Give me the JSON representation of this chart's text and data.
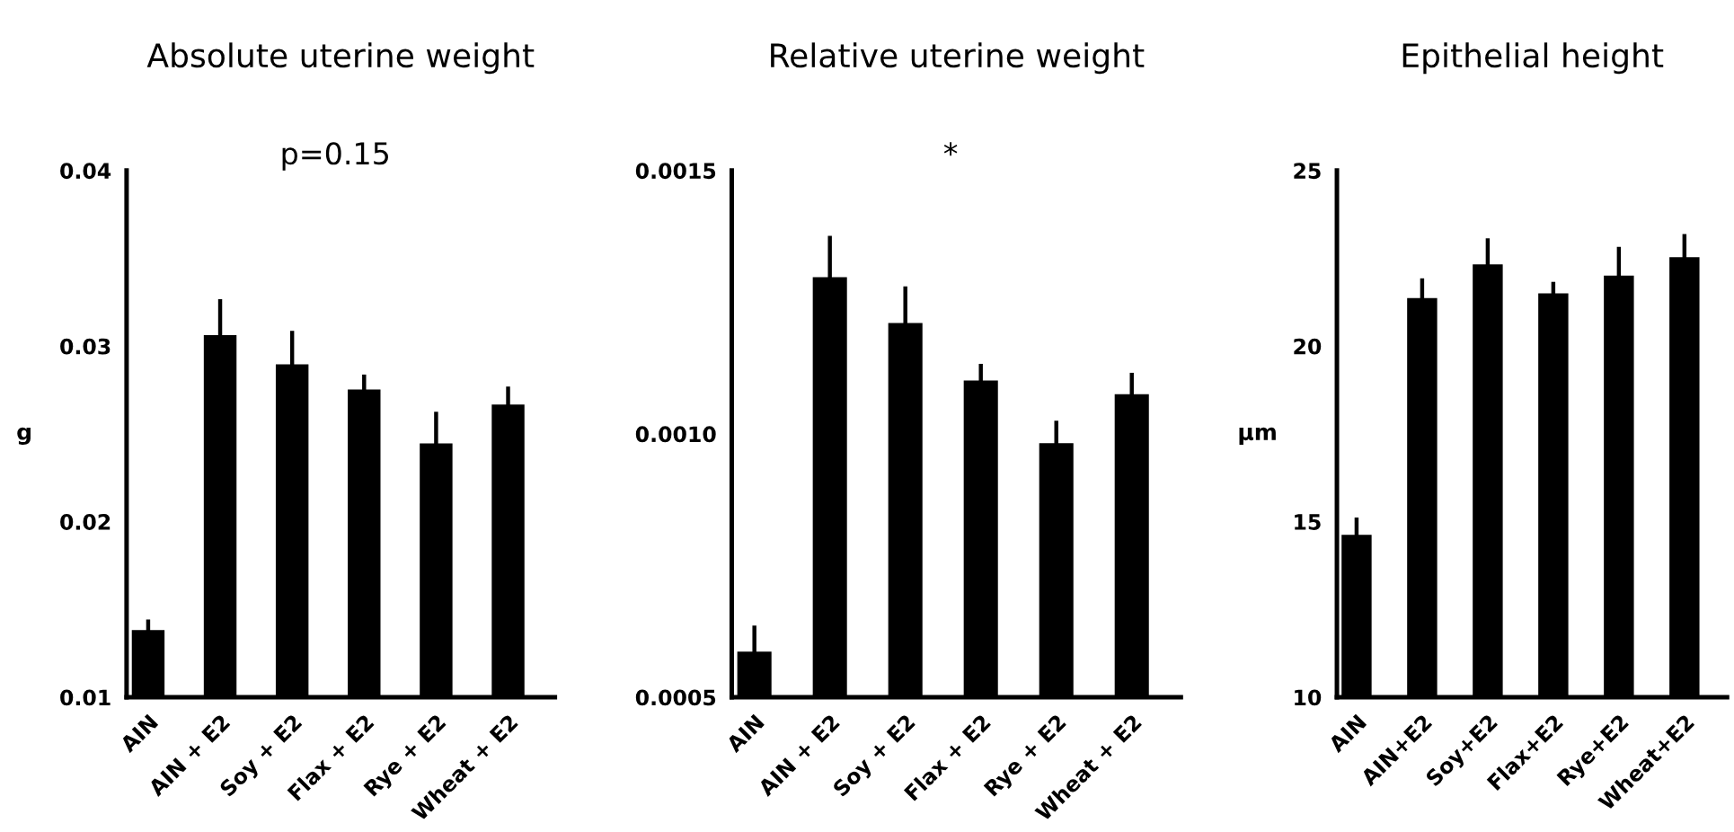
{
  "chart_data": [
    {
      "type": "bar",
      "title": "Absolute uterine weight",
      "ylabel": "g",
      "categories": [
        "AIN",
        "AIN + E2",
        "Soy + E2",
        "Flax + E2",
        "Rye + E2",
        "Wheat + E2"
      ],
      "values": [
        0.01375,
        0.03056,
        0.02889,
        0.02746,
        0.02439,
        0.0266
      ],
      "errors": [
        [
          0.01375,
          0.01443
        ],
        [
          0.03056,
          0.03267
        ],
        [
          0.02889,
          0.03087
        ],
        [
          0.02746,
          0.02838
        ],
        [
          0.02439,
          0.02626
        ],
        [
          0.0266,
          0.0277
        ]
      ],
      "color": "#000000",
      "ylim": [
        0.01,
        0.04
      ],
      "yticks": [
        {
          "value": 0.01,
          "label": "0.01"
        },
        {
          "value": 0.02,
          "label": "0.02"
        },
        {
          "value": 0.03,
          "label": "0.03"
        },
        {
          "value": 0.04,
          "label": "0.04"
        }
      ],
      "annotations": [
        "p=0.15"
      ],
      "grid": false
    },
    {
      "type": "bar",
      "title": "Relative uterine weight",
      "categories": [
        "AIN",
        "AIN + E2",
        "Soy + E2",
        "Flax + E2",
        "Rye + E2",
        "Wheat + E2"
      ],
      "values": [
        0.000584,
        0.001295,
        0.001208,
        0.001099,
        0.00098,
        0.001073
      ],
      "errors": [
        [
          0.000584,
          0.000636
        ],
        [
          0.001295,
          0.001376
        ],
        [
          0.001208,
          0.00128
        ],
        [
          0.001099,
          0.001133
        ],
        [
          0.00098,
          0.001025
        ],
        [
          0.001073,
          0.001116
        ]
      ],
      "color": "#000000",
      "ylim": [
        0.0005,
        0.0015
      ],
      "yticks": [
        {
          "value": 0.0005,
          "label": "0.0005"
        },
        {
          "value": 0.001,
          "label": "0.0010"
        },
        {
          "value": 0.0015,
          "label": "0.0015"
        }
      ],
      "annotations": [
        "*"
      ],
      "grid": false
    },
    {
      "type": "bar",
      "title": "Epithelial height",
      "ylabel": "µm",
      "categories": [
        "AIN",
        "AIN+E2",
        "Soy+E2",
        "Flax+E2",
        "Rye+E2",
        "Wheat+E2"
      ],
      "values": [
        14.59,
        21.33,
        22.29,
        21.47,
        21.97,
        22.5
      ],
      "errors": [
        [
          14.59,
          15.12
        ],
        [
          21.33,
          21.93
        ],
        [
          22.29,
          23.07
        ],
        [
          21.47,
          21.83
        ],
        [
          21.97,
          22.83
        ],
        [
          22.5,
          23.19
        ]
      ],
      "color": "#000000",
      "ylim": [
        10,
        25
      ],
      "yticks": [
        10,
        15,
        20,
        25
      ],
      "grid": false
    }
  ]
}
